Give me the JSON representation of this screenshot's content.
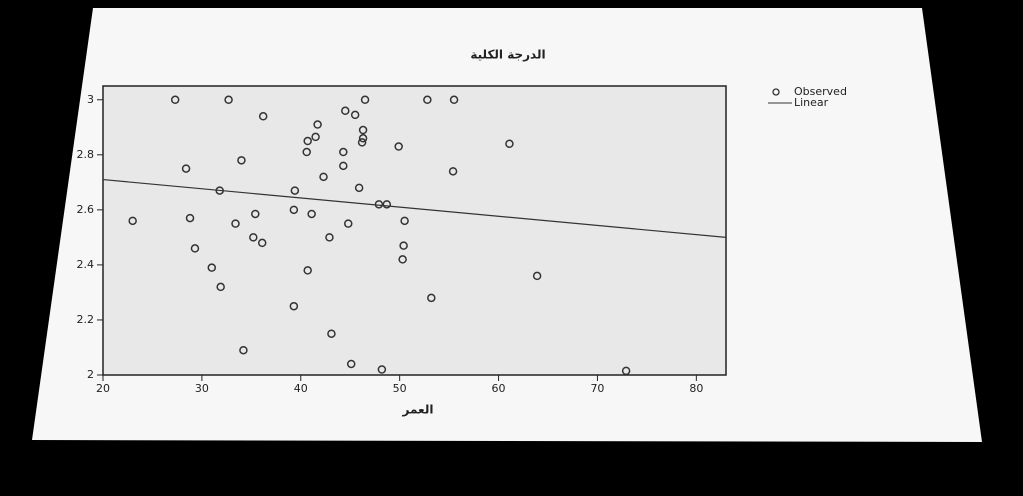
{
  "chart_data": {
    "type": "scatter",
    "title": "الدرجة الكلية",
    "x_label": "العمر",
    "xlim": [
      20,
      83
    ],
    "ylim": [
      2,
      3.05
    ],
    "xticks": [
      20,
      30,
      40,
      50,
      60,
      70,
      80
    ],
    "yticks": [
      2,
      2.2,
      2.4,
      2.6,
      2.8,
      3
    ],
    "legend": "right",
    "series": [
      {
        "name": "Observed",
        "type": "scatter",
        "color": "#333333",
        "x": [
          27.3,
          32.7,
          46.5,
          52.8,
          55.5,
          44.5,
          45.5,
          36.2,
          41.7,
          46.3,
          41.5,
          46.3,
          40.7,
          46.2,
          49.9,
          61.1,
          40.6,
          44.3,
          34.0,
          44.3,
          28.4,
          55.4,
          42.3,
          45.9,
          31.8,
          39.4,
          48.7,
          47.9,
          39.3,
          35.4,
          41.1,
          28.8,
          23.0,
          50.5,
          33.4,
          44.8,
          35.2,
          42.9,
          36.1,
          50.4,
          29.3,
          50.3,
          31.0,
          40.7,
          63.9,
          31.9,
          53.2,
          39.3,
          43.1,
          34.2,
          45.1,
          48.2,
          72.9
        ],
        "values": [
          3.0,
          3.0,
          3.0,
          3.0,
          3.0,
          2.96,
          2.945,
          2.94,
          2.91,
          2.89,
          2.865,
          2.86,
          2.85,
          2.845,
          2.83,
          2.84,
          2.81,
          2.81,
          2.78,
          2.76,
          2.75,
          2.74,
          2.72,
          2.68,
          2.67,
          2.67,
          2.62,
          2.62,
          2.6,
          2.585,
          2.585,
          2.57,
          2.56,
          2.56,
          2.55,
          2.55,
          2.5,
          2.5,
          2.48,
          2.47,
          2.46,
          2.42,
          2.39,
          2.38,
          2.36,
          2.32,
          2.28,
          2.25,
          2.15,
          2.09,
          2.04,
          2.02,
          2.015
        ]
      },
      {
        "name": "Linear",
        "type": "line",
        "color": "#333333",
        "x": [
          20,
          83
        ],
        "values": [
          2.71,
          2.5
        ]
      }
    ]
  }
}
